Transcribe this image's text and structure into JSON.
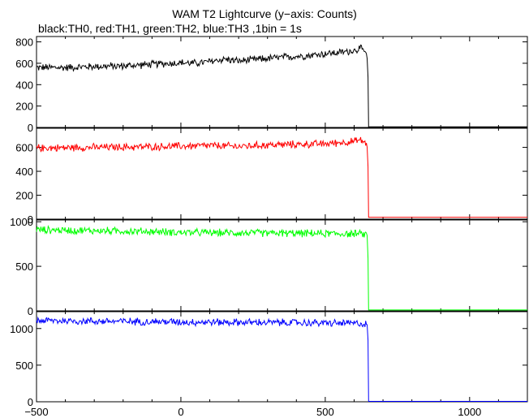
{
  "chart_data": {
    "title": "WAM T2 Lightcurve (y−axis: Counts)",
    "subtitle": "black:TH0, red:TH1, green:TH2, blue:TH3 ,1bin = 1s",
    "x_range": [
      -500,
      1200
    ],
    "x_ticks": [
      "−500",
      "0",
      "500",
      "1000"
    ],
    "x_tick_values": [
      -500,
      0,
      500,
      1000
    ],
    "panels": [
      {
        "type": "line",
        "series_name": "TH0",
        "color": "#000000",
        "ylim": [
          0,
          850
        ],
        "yticks": [
          0,
          200,
          400,
          600,
          800
        ],
        "points": [
          [
            -500,
            560
          ],
          [
            -400,
            560
          ],
          [
            -300,
            570
          ],
          [
            -200,
            575
          ],
          [
            -100,
            590
          ],
          [
            0,
            605
          ],
          [
            50,
            600
          ],
          [
            100,
            615
          ],
          [
            150,
            640
          ],
          [
            200,
            620
          ],
          [
            300,
            645
          ],
          [
            400,
            665
          ],
          [
            450,
            675
          ],
          [
            500,
            690
          ],
          [
            550,
            700
          ],
          [
            600,
            720
          ],
          [
            620,
            740
          ],
          [
            640,
            700
          ],
          [
            645,
            640
          ],
          [
            648,
            450
          ],
          [
            650,
            5
          ],
          [
            1200,
            5
          ]
        ]
      },
      {
        "type": "line",
        "series_name": "TH1",
        "color": "#ff0000",
        "ylim": [
          0,
          760
        ],
        "yticks": [
          0,
          200,
          400,
          600
        ],
        "points": [
          [
            -500,
            595
          ],
          [
            -300,
            600
          ],
          [
            -100,
            605
          ],
          [
            0,
            610
          ],
          [
            100,
            615
          ],
          [
            200,
            608
          ],
          [
            300,
            620
          ],
          [
            400,
            625
          ],
          [
            500,
            630
          ],
          [
            550,
            640
          ],
          [
            600,
            650
          ],
          [
            620,
            660
          ],
          [
            640,
            640
          ],
          [
            645,
            600
          ],
          [
            648,
            450
          ],
          [
            650,
            15
          ],
          [
            1200,
            15
          ]
        ]
      },
      {
        "type": "line",
        "series_name": "TH2",
        "color": "#00ff00",
        "ylim": [
          0,
          1020
        ],
        "yticks": [
          0,
          500,
          1000
        ],
        "points": [
          [
            -500,
            910
          ],
          [
            -300,
            900
          ],
          [
            -100,
            890
          ],
          [
            0,
            880
          ],
          [
            200,
            875
          ],
          [
            400,
            870
          ],
          [
            500,
            868
          ],
          [
            600,
            865
          ],
          [
            640,
            860
          ],
          [
            645,
            840
          ],
          [
            648,
            600
          ],
          [
            650,
            10
          ],
          [
            1200,
            10
          ]
        ]
      },
      {
        "type": "line",
        "series_name": "TH3",
        "color": "#0000ff",
        "ylim": [
          0,
          1230
        ],
        "yticks": [
          0,
          500,
          1000
        ],
        "points": [
          [
            -500,
            1110
          ],
          [
            -300,
            1100
          ],
          [
            -100,
            1095
          ],
          [
            0,
            1090
          ],
          [
            200,
            1085
          ],
          [
            400,
            1080
          ],
          [
            500,
            1075
          ],
          [
            600,
            1070
          ],
          [
            640,
            1065
          ],
          [
            645,
            1050
          ],
          [
            648,
            800
          ],
          [
            650,
            5
          ],
          [
            1200,
            5
          ]
        ]
      }
    ]
  }
}
